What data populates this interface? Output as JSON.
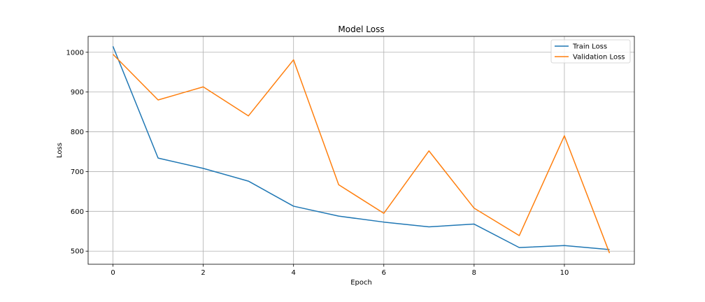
{
  "chart_data": {
    "type": "line",
    "title": "Model Loss",
    "xlabel": "Epoch",
    "ylabel": "Loss",
    "x": [
      0,
      1,
      2,
      3,
      4,
      5,
      6,
      7,
      8,
      9,
      10,
      11
    ],
    "xlim": [
      -0.55,
      11.55
    ],
    "ylim": [
      467,
      1040
    ],
    "xticks": [
      0,
      2,
      4,
      6,
      8,
      10
    ],
    "yticks": [
      500,
      600,
      700,
      800,
      900,
      1000
    ],
    "grid": true,
    "legend_position": "top-right",
    "series": [
      {
        "name": "Train Loss",
        "color": "#1f77b4",
        "values": [
          1015,
          734,
          708,
          676,
          613,
          588,
          573,
          561,
          568,
          509,
          514,
          504
        ]
      },
      {
        "name": "Validation Loss",
        "color": "#ff7f0e",
        "values": [
          995,
          880,
          913,
          840,
          981,
          667,
          595,
          752,
          608,
          539,
          790,
          495
        ]
      }
    ]
  }
}
